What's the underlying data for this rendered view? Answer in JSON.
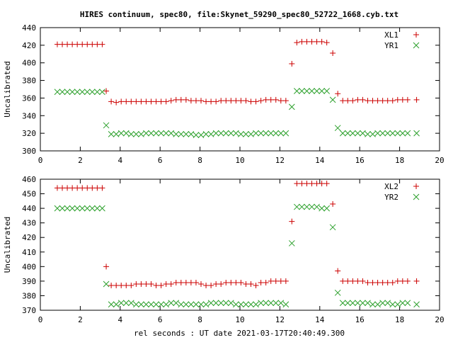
{
  "title": "HIRES continuum, spec80, file:Skynet_59290_spec80_52722_1668.cyb.txt",
  "xlabel": "rel seconds : UT date 2021-03-17T20:40:49.300",
  "colors": {
    "xl": "#cc0000",
    "yr": "#2ca02c"
  },
  "chart_data": [
    {
      "type": "scatter",
      "ylabel": "Uncalibrated",
      "xlim": [
        0,
        20
      ],
      "ylim": [
        300,
        440
      ],
      "xticks": [
        0,
        2,
        4,
        6,
        8,
        10,
        12,
        14,
        16,
        18,
        20
      ],
      "yticks": [
        300,
        320,
        340,
        360,
        380,
        400,
        420,
        440
      ],
      "legend_position": "top-right",
      "x": [
        0.85,
        1.1,
        1.35,
        1.6,
        1.85,
        2.1,
        2.35,
        2.6,
        2.85,
        3.1,
        3.3,
        3.55,
        3.8,
        4.05,
        4.3,
        4.55,
        4.8,
        5.05,
        5.3,
        5.55,
        5.8,
        6.05,
        6.3,
        6.55,
        6.8,
        7.05,
        7.3,
        7.55,
        7.8,
        8.05,
        8.3,
        8.55,
        8.8,
        9.05,
        9.3,
        9.55,
        9.8,
        10.05,
        10.3,
        10.55,
        10.8,
        11.05,
        11.3,
        11.55,
        11.8,
        12.05,
        12.3,
        12.6,
        12.85,
        13.1,
        13.35,
        13.6,
        13.85,
        14.1,
        14.35,
        14.65,
        14.9,
        15.15,
        15.4,
        15.65,
        15.9,
        16.15,
        16.4,
        16.65,
        16.9,
        17.15,
        17.4,
        17.65,
        17.9,
        18.15,
        18.4,
        18.85
      ],
      "series": [
        {
          "name": "XL1",
          "marker": "plus",
          "values": [
            421,
            421,
            421,
            421,
            421,
            421,
            421,
            421,
            421,
            421,
            368,
            356,
            355,
            356,
            356,
            356,
            356,
            356,
            356,
            356,
            356,
            356,
            356,
            357,
            358,
            358,
            358,
            357,
            357,
            357,
            356,
            356,
            356,
            357,
            357,
            357,
            357,
            357,
            357,
            356,
            356,
            357,
            358,
            358,
            358,
            357,
            357,
            399,
            423,
            424,
            424,
            424,
            424,
            424,
            423,
            411,
            365,
            357,
            357,
            357,
            358,
            358,
            357,
            357,
            357,
            357,
            357,
            357,
            358,
            358,
            358,
            358
          ]
        },
        {
          "name": "YR1",
          "marker": "cross",
          "values": [
            367,
            367,
            367,
            367,
            367,
            367,
            367,
            367,
            367,
            367,
            329,
            319,
            319,
            320,
            320,
            319,
            319,
            319,
            320,
            320,
            320,
            320,
            320,
            320,
            319,
            319,
            319,
            319,
            318,
            318,
            319,
            319,
            320,
            320,
            320,
            320,
            320,
            319,
            319,
            319,
            320,
            320,
            320,
            320,
            320,
            320,
            320,
            350,
            368,
            368,
            368,
            368,
            368,
            368,
            368,
            358,
            326,
            320,
            320,
            320,
            320,
            320,
            319,
            319,
            320,
            320,
            320,
            320,
            320,
            320,
            320,
            320
          ]
        }
      ]
    },
    {
      "type": "scatter",
      "ylabel": "Uncalibrated",
      "xlim": [
        0,
        20
      ],
      "ylim": [
        370,
        460
      ],
      "xticks": [
        0,
        2,
        4,
        6,
        8,
        10,
        12,
        14,
        16,
        18,
        20
      ],
      "yticks": [
        370,
        380,
        390,
        400,
        410,
        420,
        430,
        440,
        450,
        460
      ],
      "legend_position": "top-right",
      "x": [
        0.85,
        1.1,
        1.35,
        1.6,
        1.85,
        2.1,
        2.35,
        2.6,
        2.85,
        3.1,
        3.3,
        3.55,
        3.8,
        4.05,
        4.3,
        4.55,
        4.8,
        5.05,
        5.3,
        5.55,
        5.8,
        6.05,
        6.3,
        6.55,
        6.8,
        7.05,
        7.3,
        7.55,
        7.8,
        8.05,
        8.3,
        8.55,
        8.8,
        9.05,
        9.3,
        9.55,
        9.8,
        10.05,
        10.3,
        10.55,
        10.8,
        11.05,
        11.3,
        11.55,
        11.8,
        12.05,
        12.3,
        12.6,
        12.85,
        13.1,
        13.35,
        13.6,
        13.85,
        14.1,
        14.35,
        14.65,
        14.9,
        15.15,
        15.4,
        15.65,
        15.9,
        16.15,
        16.4,
        16.65,
        16.9,
        17.15,
        17.4,
        17.65,
        17.9,
        18.15,
        18.4,
        18.85
      ],
      "series": [
        {
          "name": "XL2",
          "marker": "plus",
          "values": [
            454,
            454,
            454,
            454,
            454,
            454,
            454,
            454,
            454,
            454,
            400,
            387,
            387,
            387,
            387,
            387,
            388,
            388,
            388,
            388,
            387,
            387,
            388,
            388,
            389,
            389,
            389,
            389,
            389,
            388,
            387,
            387,
            388,
            388,
            389,
            389,
            389,
            389,
            388,
            388,
            387,
            389,
            389,
            390,
            390,
            390,
            390,
            431,
            457,
            457,
            457,
            457,
            457,
            457,
            457,
            443,
            397,
            390,
            390,
            390,
            390,
            390,
            389,
            389,
            389,
            389,
            389,
            389,
            390,
            390,
            390,
            390
          ]
        },
        {
          "name": "YR2",
          "marker": "cross",
          "values": [
            440,
            440,
            440,
            440,
            440,
            440,
            440,
            440,
            440,
            440,
            388,
            374,
            374,
            375,
            375,
            375,
            374,
            374,
            374,
            374,
            374,
            374,
            374,
            375,
            375,
            374,
            374,
            374,
            374,
            374,
            374,
            375,
            375,
            375,
            375,
            375,
            374,
            374,
            374,
            374,
            374,
            375,
            375,
            375,
            375,
            375,
            374,
            416,
            441,
            441,
            441,
            441,
            441,
            440,
            440,
            427,
            382,
            375,
            375,
            375,
            375,
            375,
            375,
            374,
            374,
            375,
            375,
            374,
            374,
            375,
            375,
            374
          ]
        }
      ]
    }
  ]
}
